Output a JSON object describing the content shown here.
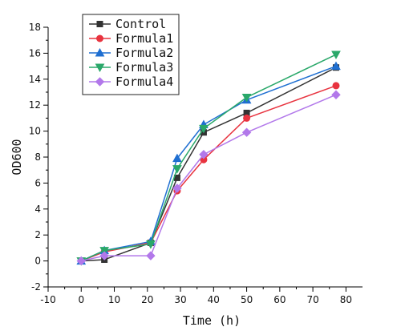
{
  "chart_data": {
    "type": "line",
    "title": "",
    "xlabel": "Time (h)",
    "ylabel": "OD600",
    "xlim": [
      -10,
      85
    ],
    "ylim": [
      -2,
      18
    ],
    "x_ticks": [
      -10,
      0,
      10,
      20,
      30,
      40,
      50,
      60,
      70,
      80
    ],
    "y_ticks": [
      -2,
      0,
      2,
      4,
      6,
      8,
      10,
      12,
      14,
      16,
      18
    ],
    "grid": false,
    "legend_position": "top-left",
    "x": [
      0,
      7,
      21,
      29,
      37,
      50,
      77
    ],
    "series": [
      {
        "name": "Control",
        "marker": "square",
        "color": "#333333",
        "values": [
          0.0,
          0.1,
          1.4,
          6.4,
          9.9,
          11.4,
          14.9
        ]
      },
      {
        "name": "Formula1",
        "marker": "circle",
        "color": "#e8333f",
        "values": [
          0.0,
          0.7,
          1.4,
          5.4,
          7.8,
          11.0,
          13.5
        ]
      },
      {
        "name": "Formula2",
        "marker": "triangle-up",
        "color": "#1f6fd1",
        "values": [
          0.0,
          0.8,
          1.5,
          7.9,
          10.5,
          12.4,
          15.0
        ]
      },
      {
        "name": "Formula3",
        "marker": "triangle-down",
        "color": "#2aa86a",
        "values": [
          0.0,
          0.8,
          1.3,
          7.1,
          10.2,
          12.6,
          15.9
        ]
      },
      {
        "name": "Formula4",
        "marker": "diamond",
        "color": "#b278ea",
        "values": [
          0.0,
          0.4,
          0.4,
          5.6,
          8.2,
          9.9,
          12.8
        ]
      }
    ]
  }
}
